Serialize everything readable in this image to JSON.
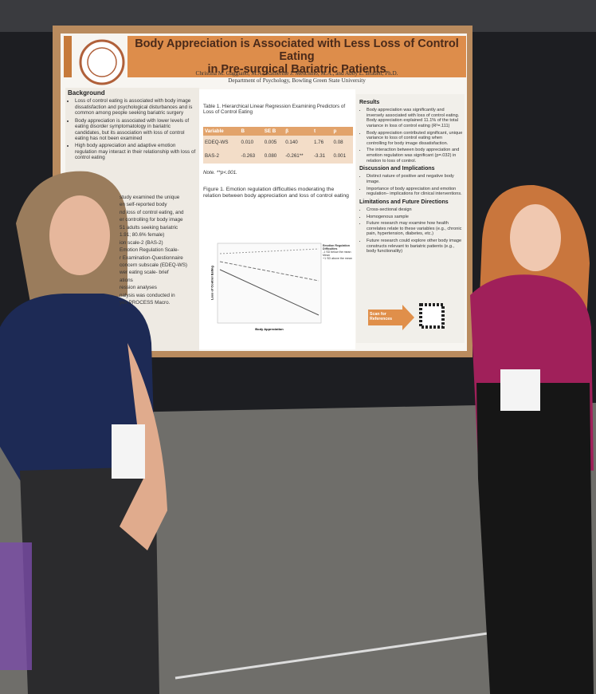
{
  "poster": {
    "title": [
      "Body Appreciation is Associated with Less Loss of Control Eating",
      "in Pre-surgical Bariatric Patients"
    ],
    "authors": "Christina M. Gaggiano, M.A., Katherine J. Meschino, M.A., and Abby L. Braden, Ph.D.",
    "affiliation": "Department of Psychology, Bowling Green State University",
    "background": {
      "heading": "Background",
      "bullets": [
        "Loss of control eating is associated with body image dissatisfaction and psychological disturbances and is common among people seeking bariatric surgery",
        "Body appreciation is associated with lower levels of eating disorder symptomatology in bariatric candidates, but its association with loss of control eating has not been examined",
        "High body appreciation and adaptive emotion regulation may interact in their relationship with loss of control eating"
      ],
      "fragments": [
        "study examined the unique",
        "en self-reported body",
        "nd loss of control eating, and",
        "er controlling for body image",
        "51 adults seeking bariatric",
        "1.91; 80.6% female)",
        "ion scale-2 (BAS-2)",
        "Emotion Regulation Scale-",
        "r Examination-Questionnaire",
        "concern subscale (EDEQ-WS)",
        "wer eating scale- brief",
        "ations",
        "ression analyses",
        "nalysis was conducted in",
        "yes PROCESS Macro."
      ]
    },
    "table": {
      "title": "Table 1. Hierarchical Linear Regression Examining Predictors of Loss of Control Eating",
      "header": [
        "Variable",
        "B",
        "SE B",
        "β",
        "t",
        "p"
      ],
      "rows": [
        [
          "EDEQ-WS",
          "0.010",
          "0.005",
          "0.140",
          "1.76",
          "0.08"
        ],
        [
          "BAS-2",
          "-0.263",
          "0.080",
          "-0.261**",
          "-3.31",
          "0.001"
        ]
      ],
      "note": "Note. **p<.001."
    },
    "figure": {
      "caption": "Figure 1. Emotion regulation difficulties moderating the relation between body appreciation and loss of control eating",
      "x_label": "Body Appreciation",
      "y_label": "Loss of Control Eating",
      "legend_title": "Emotion Regulation Difficulties",
      "legend": [
        "-1 SD below the mean",
        "Mean",
        "+1 SD above the mean"
      ]
    },
    "results": {
      "heading": "Results",
      "bullets": [
        "Body appreciation was significantly and inversely associated with loss of control eating. Body appreciation explained 11.1% of the total variance in loss of control eating (R²=.111)",
        "Body appreciation contributed significant, unique variance to loss of control eating when controlling for body image dissatisfaction.",
        "The interaction between body appreciation and emotion regulation was significant (p=.032) in relation to loss of control."
      ]
    },
    "discussion": {
      "heading": "Discussion and Implications",
      "bullets": [
        "Distinct nature of positive and negative body image.",
        "Importance of body appreciation and emotion regulation– implications for clinical interventions."
      ]
    },
    "limitations": {
      "heading": "Limitations and Future Directions",
      "bullets": [
        "Cross-sectional design",
        "Homogenous sample",
        "Future research may examine how health correlates relate to these variables (e.g., chronic pain, hypertension, diabetes, etc.)",
        "Future research could explore other body image constructs relevant to bariatric patients (e.g., body functionality)"
      ]
    },
    "scan": "Scan for References"
  }
}
